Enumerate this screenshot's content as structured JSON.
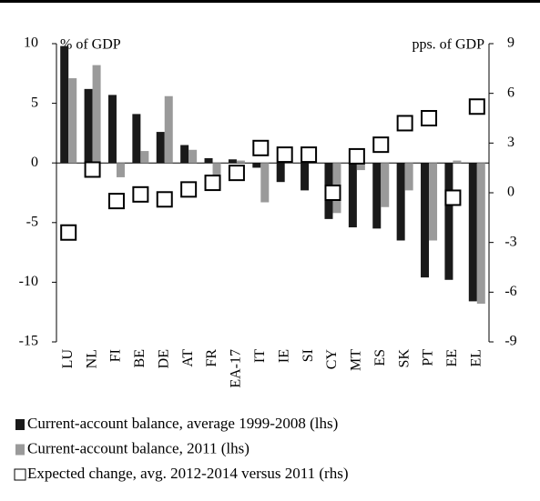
{
  "chart_data": {
    "type": "bar",
    "y_label": "% of GDP",
    "y2_label": "pps. of GDP",
    "categories": [
      "LU",
      "NL",
      "FI",
      "BE",
      "DE",
      "AT",
      "FR",
      "EA-17",
      "IT",
      "IE",
      "SI",
      "CY",
      "MT",
      "ES",
      "SK",
      "PT",
      "EE",
      "EL"
    ],
    "series": [
      {
        "name": "Current-account balance, average 1999-2008 (lhs)",
        "type": "bar",
        "color": "#1a1a1a",
        "values": [
          9.8,
          6.2,
          5.7,
          4.1,
          2.6,
          1.5,
          0.4,
          0.3,
          -0.4,
          -1.6,
          -2.3,
          -4.7,
          -5.4,
          -5.5,
          -6.5,
          -9.6,
          -9.8,
          -11.6
        ]
      },
      {
        "name": "Current-account balance, 2011 (lhs)",
        "type": "bar",
        "color": "#9a9a9a",
        "values": [
          7.1,
          8.2,
          -1.2,
          1.0,
          5.6,
          1.1,
          -1.9,
          0.2,
          -3.3,
          0.1,
          0.0,
          -4.2,
          -0.6,
          -3.7,
          -2.3,
          -6.5,
          0.2,
          -11.8
        ]
      },
      {
        "name": "Expected change, avg. 2012-2014 versus 2011 (rhs)",
        "type": "scatter",
        "axis": "y2",
        "color": "#000000",
        "values": [
          -2.4,
          1.4,
          -0.5,
          -0.1,
          -0.4,
          0.2,
          0.6,
          1.2,
          2.7,
          2.3,
          2.3,
          0.0,
          2.2,
          2.9,
          4.2,
          4.5,
          -0.3,
          5.2
        ]
      }
    ],
    "ylim": [
      -15,
      10
    ],
    "yticks": [
      -15,
      -10,
      -5,
      0,
      5,
      10
    ],
    "y2lim": [
      -9,
      9
    ],
    "y2ticks": [
      -9,
      -6,
      -3,
      0,
      3,
      6,
      9
    ]
  }
}
